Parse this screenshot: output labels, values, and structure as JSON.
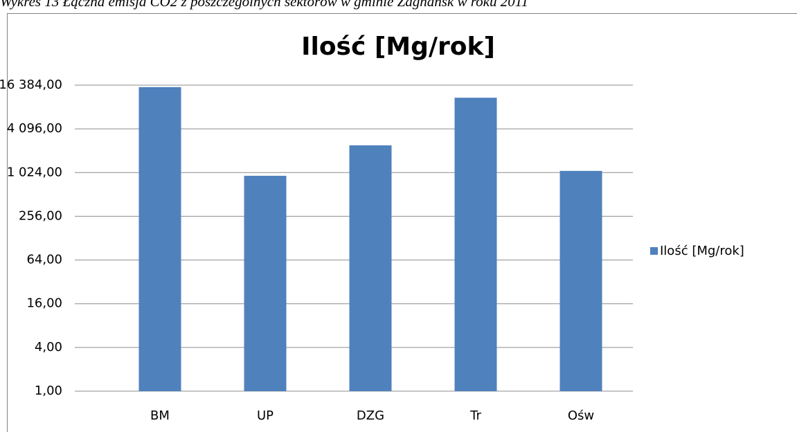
{
  "caption": "Wykres 13 Łączna emisja CO2 z poszczególnych sektorów w gminie Zagnańsk w roku 2011",
  "chart_data": {
    "type": "bar",
    "title": "Ilość [Mg/rok]",
    "categories": [
      "BM",
      "UP",
      "DZG",
      "Tr",
      "Ośw"
    ],
    "series": [
      {
        "name": "Ilość [Mg/rok]",
        "color": "#4f81bd",
        "values": [
          15400,
          925,
          2430,
          11000,
          1080
        ]
      }
    ],
    "log_scale": true,
    "log_base": 2,
    "ylim": [
      1,
      16384
    ],
    "yticks": [
      {
        "value": 1,
        "label": "1,00"
      },
      {
        "value": 4,
        "label": "4,00"
      },
      {
        "value": 16,
        "label": "16,00"
      },
      {
        "value": 64,
        "label": "64,00"
      },
      {
        "value": 256,
        "label": "256,00"
      },
      {
        "value": 1024,
        "label": "1 024,00"
      },
      {
        "value": 4096,
        "label": "4 096,00"
      },
      {
        "value": 16384,
        "label": "16 384,00"
      }
    ],
    "grid": true,
    "legend": "right"
  }
}
